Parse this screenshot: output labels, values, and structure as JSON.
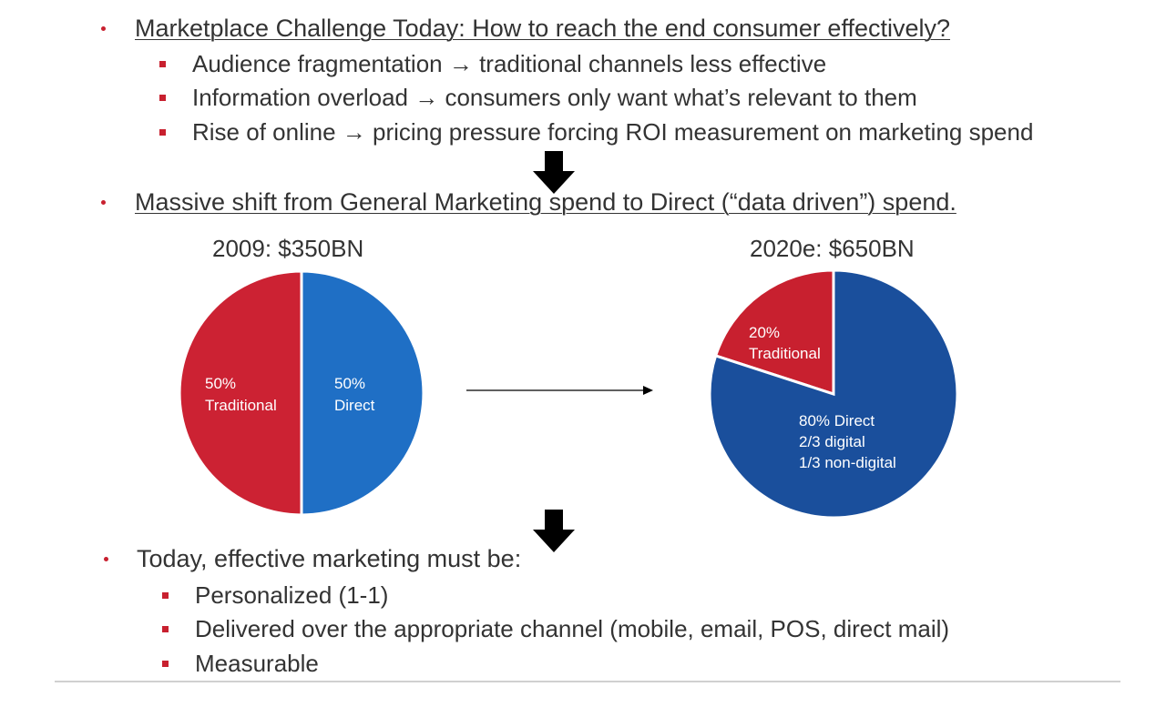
{
  "section1": {
    "heading": "Marketplace Challenge Today:  How to reach the end consumer effectively?",
    "items": [
      "Audience fragmentation → traditional channels less effective",
      "Information overload → consumers only want what’s relevant to them",
      "Rise of online → pricing pressure forcing ROI measurement on marketing spend"
    ]
  },
  "section2": {
    "heading": "Massive shift from General Marketing spend to Direct (“data driven”) spend."
  },
  "section3": {
    "heading": "Today, effective marketing must be:",
    "items": [
      "Personalized (1-1)",
      "Delivered over the appropriate channel (mobile, email, POS, direct mail)",
      "Measurable"
    ]
  },
  "colors": {
    "bullet": "#c8202f",
    "traditional_2009": "#cc2233",
    "direct_2009": "#1f6fc5",
    "traditional_2020": "#c8202f",
    "direct_2020": "#1a4f9c",
    "arrow": "#000000"
  },
  "chart_data": [
    {
      "type": "pie",
      "title": "2009:  $350BN",
      "slices": [
        {
          "value": 50,
          "lines": [
            "50%",
            "Traditional"
          ]
        },
        {
          "value": 50,
          "lines": [
            "50%",
            "Direct"
          ]
        }
      ]
    },
    {
      "type": "pie",
      "title": "2020e:  $650BN",
      "slices": [
        {
          "value": 20,
          "lines": [
            "20%",
            "Traditional"
          ]
        },
        {
          "value": 80,
          "lines": [
            "80% Direct",
            "2/3 digital",
            "1/3 non-digital"
          ]
        }
      ]
    }
  ]
}
